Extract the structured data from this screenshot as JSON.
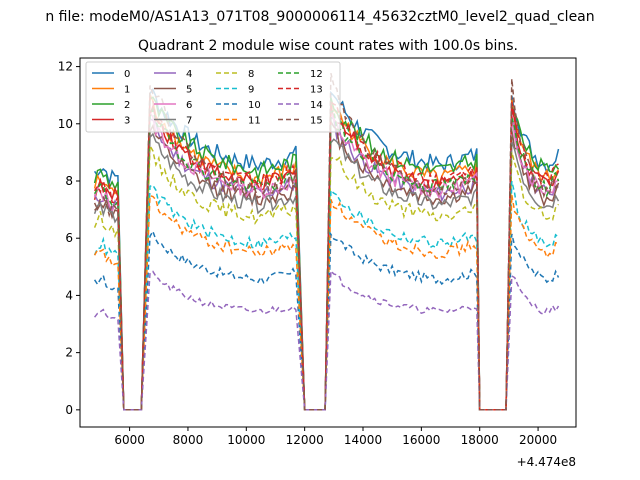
{
  "chart_data": {
    "type": "line",
    "suptitle": "n file: modeM0/AS1A13_071T08_9000006114_45632cztM0_level2_quad_clean",
    "title": "Quadrant 2 module wise count rates with 100.0s bins.",
    "xlabel": "",
    "ylabel": "",
    "x_offset_label": "+4.474e8",
    "xlim": [
      4300,
      21300
    ],
    "ylim": [
      -0.6,
      12.3
    ],
    "x_ticks": [
      6000,
      8000,
      10000,
      12000,
      14000,
      16000,
      18000,
      20000
    ],
    "x_tick_labels": [
      "6000",
      "8000",
      "10000",
      "12000",
      "14000",
      "16000",
      "18000",
      "20000"
    ],
    "y_ticks": [
      0,
      2,
      4,
      6,
      8,
      10,
      12
    ],
    "y_tick_labels": [
      "0",
      "2",
      "4",
      "6",
      "8",
      "10",
      "12"
    ],
    "legend_position": "upper-left",
    "legend_columns": 4,
    "grid": false,
    "segments": [
      {
        "x_start": 4800,
        "x_end": 5600
      },
      {
        "x_start": 6700,
        "x_end": 11700
      },
      {
        "x_start": 12900,
        "x_end": 17900
      },
      {
        "x_start": 19100,
        "x_end": 20700
      }
    ],
    "gap_zero_ranges": [
      [
        5800,
        6400
      ],
      [
        12000,
        12700
      ],
      [
        18000,
        18900
      ]
    ],
    "series": [
      {
        "name": "0",
        "color": "#1f77b4",
        "dash": "solid",
        "baseline": 8.3,
        "peak": 11.2
      },
      {
        "name": "1",
        "color": "#ff7f0e",
        "dash": "solid",
        "baseline": 7.8,
        "peak": 10.8
      },
      {
        "name": "2",
        "color": "#2ca02c",
        "dash": "solid",
        "baseline": 8.1,
        "peak": 10.9
      },
      {
        "name": "3",
        "color": "#d62728",
        "dash": "solid",
        "baseline": 7.6,
        "peak": 10.6
      },
      {
        "name": "4",
        "color": "#9467bd",
        "dash": "solid",
        "baseline": 7.3,
        "peak": 10.1
      },
      {
        "name": "5",
        "color": "#8c564b",
        "dash": "solid",
        "baseline": 7.1,
        "peak": 9.9
      },
      {
        "name": "6",
        "color": "#e377c2",
        "dash": "solid",
        "baseline": 7.4,
        "peak": 10.2
      },
      {
        "name": "7",
        "color": "#7f7f7f",
        "dash": "solid",
        "baseline": 6.9,
        "peak": 9.6
      },
      {
        "name": "8",
        "color": "#bcbd22",
        "dash": "dashed",
        "baseline": 6.5,
        "peak": 9.0
      },
      {
        "name": "9",
        "color": "#17becf",
        "dash": "dashed",
        "baseline": 5.6,
        "peak": 7.8
      },
      {
        "name": "10",
        "color": "#1f77b4",
        "dash": "dashed",
        "baseline": 4.4,
        "peak": 6.2
      },
      {
        "name": "11",
        "color": "#ff7f0e",
        "dash": "dashed",
        "baseline": 5.3,
        "peak": 7.4
      },
      {
        "name": "12",
        "color": "#2ca02c",
        "dash": "dashed",
        "baseline": 7.5,
        "peak": 10.4
      },
      {
        "name": "13",
        "color": "#d62728",
        "dash": "dashed",
        "baseline": 7.7,
        "peak": 10.7
      },
      {
        "name": "14",
        "color": "#9467bd",
        "dash": "dashed",
        "baseline": 3.3,
        "peak": 4.8
      },
      {
        "name": "15",
        "color": "#8c564b",
        "dash": "dashed",
        "baseline": 7.2,
        "peak": 11.6
      }
    ]
  }
}
